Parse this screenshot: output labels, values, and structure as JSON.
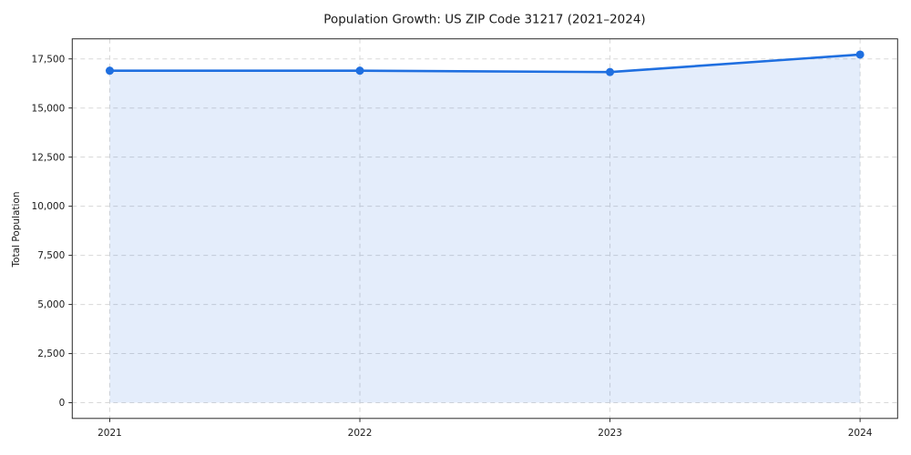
{
  "chart_data": {
    "type": "line",
    "title": "Population Growth: US ZIP Code 31217 (2021–2024)",
    "xlabel": "",
    "ylabel": "Total Population",
    "x": [
      2021,
      2022,
      2023,
      2024
    ],
    "x_tick_labels": [
      "2021",
      "2022",
      "2023",
      "2024"
    ],
    "series": [
      {
        "name": "Total Population",
        "values": [
          16900,
          16900,
          16830,
          17720
        ]
      }
    ],
    "yticks": [
      0,
      2500,
      5000,
      7500,
      10000,
      12500,
      15000,
      17500
    ],
    "ytick_labels": [
      "0",
      "2,500",
      "5,000",
      "7,500",
      "10,000",
      "12,500",
      "15,000",
      "17,500"
    ],
    "xlim": [
      2020.85,
      2024.15
    ],
    "ylim": [
      -800,
      18520
    ],
    "grid": "dashed both axes",
    "legend": "none",
    "area_fill": true,
    "colors": {
      "line": "#1f6fe0",
      "marker": "#1f6fe0",
      "fill_rgba": "rgba(31,111,224,0.12)",
      "grid": "#d8d8d8",
      "text": "#1a1a1a",
      "spine": "#2a2a2a",
      "background": "#ffffff"
    }
  }
}
